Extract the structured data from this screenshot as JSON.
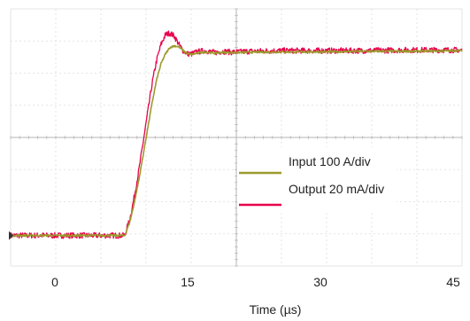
{
  "chart_data": {
    "type": "line",
    "xlabel": "Time (µs)",
    "x_ticks": [
      0,
      15,
      30,
      45
    ],
    "xlim": [
      -5,
      46
    ],
    "ylim": [
      0,
      8
    ],
    "grid": true,
    "legend_position": "right-center",
    "series": [
      {
        "name": "Input 100 A/div",
        "color": "#9c9a2e",
        "x": [
          -5,
          7.9,
          8.5,
          9.0,
          9.5,
          10.0,
          10.5,
          11.0,
          11.5,
          12.0,
          12.5,
          13.0,
          13.5,
          14.0,
          14.5,
          15.0,
          15.5,
          16.0,
          17.0,
          18.0,
          19.0,
          20.0,
          22.0,
          25.0,
          30.0,
          35.0,
          40.0,
          46.0
        ],
        "y": [
          0.95,
          0.95,
          1.4,
          2.0,
          2.7,
          3.5,
          4.3,
          5.1,
          5.8,
          6.3,
          6.6,
          6.8,
          6.85,
          6.82,
          6.7,
          6.6,
          6.58,
          6.62,
          6.66,
          6.62,
          6.65,
          6.64,
          6.65,
          6.66,
          6.66,
          6.68,
          6.68,
          6.7
        ]
      },
      {
        "name": "Output 20 mA/div",
        "color": "#e8004c",
        "x": [
          -5,
          7.9,
          8.5,
          9.0,
          9.5,
          10.0,
          10.5,
          11.0,
          11.5,
          12.0,
          12.5,
          13.0,
          13.5,
          14.0,
          14.5,
          15.0,
          15.5,
          16.0,
          17.0,
          18.0,
          19.0,
          20.0,
          22.0,
          25.0,
          30.0,
          35.0,
          40.0,
          46.0
        ],
        "y": [
          0.95,
          0.95,
          1.5,
          2.2,
          3.0,
          3.9,
          4.8,
          5.7,
          6.4,
          6.9,
          7.2,
          7.25,
          7.15,
          6.9,
          6.7,
          6.6,
          6.6,
          6.66,
          6.7,
          6.64,
          6.68,
          6.65,
          6.68,
          6.7,
          6.7,
          6.7,
          6.72,
          6.72
        ]
      }
    ]
  }
}
